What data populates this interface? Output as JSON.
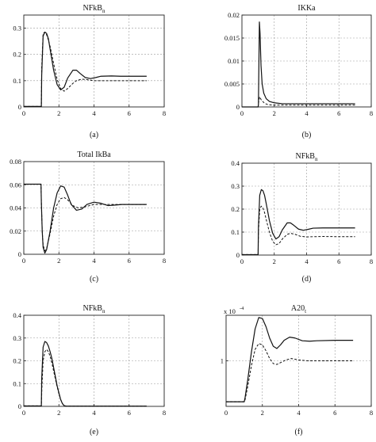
{
  "chart_data": [
    {
      "type": "line",
      "title": "NFkB",
      "title_sub": "n",
      "caption": "(a)",
      "xlim": [
        0,
        8
      ],
      "ylim": [
        0,
        0.35
      ],
      "xticks": [
        0,
        2,
        4,
        6,
        8
      ],
      "yticks": [
        0,
        0.1,
        0.2,
        0.3
      ],
      "ytick_labels": [
        "0",
        "0.1",
        "0.2",
        "0.3"
      ],
      "grid": true,
      "series": [
        {
          "style": "solid",
          "x": [
            0,
            1,
            1.02,
            1.1,
            1.2,
            1.3,
            1.4,
            1.5,
            1.7,
            1.9,
            2.1,
            2.3,
            2.5,
            2.8,
            3,
            3.2,
            3.5,
            3.8,
            4.1,
            4.4,
            5,
            5.5,
            6,
            7
          ],
          "y": [
            0.002,
            0.002,
            0.12,
            0.27,
            0.285,
            0.28,
            0.26,
            0.22,
            0.14,
            0.085,
            0.065,
            0.075,
            0.11,
            0.14,
            0.14,
            0.128,
            0.112,
            0.108,
            0.112,
            0.117,
            0.118,
            0.117,
            0.117,
            0.117
          ]
        },
        {
          "style": "dashed",
          "x": [
            0,
            1,
            1.02,
            1.1,
            1.2,
            1.3,
            1.4,
            1.5,
            1.7,
            1.9,
            2.1,
            2.3,
            2.5,
            2.8,
            3,
            3.3,
            3.6,
            4,
            4.4,
            5,
            6,
            7
          ],
          "y": [
            0.002,
            0.002,
            0.15,
            0.28,
            0.285,
            0.275,
            0.255,
            0.23,
            0.165,
            0.105,
            0.07,
            0.06,
            0.07,
            0.09,
            0.1,
            0.106,
            0.104,
            0.1,
            0.1,
            0.1,
            0.1,
            0.1
          ]
        }
      ]
    },
    {
      "type": "line",
      "title": "IKKa",
      "title_sub": "",
      "caption": "(b)",
      "xlim": [
        0,
        8
      ],
      "ylim": [
        0,
        0.02
      ],
      "xticks": [
        0,
        2,
        4,
        6,
        8
      ],
      "yticks": [
        0,
        0.005,
        0.01,
        0.015,
        0.02
      ],
      "ytick_labels": [
        "0",
        "0.005",
        "0.01",
        "0.015",
        "0.02"
      ],
      "grid": true,
      "series": [
        {
          "style": "solid",
          "x": [
            0,
            1,
            1.02,
            1.08,
            1.12,
            1.18,
            1.25,
            1.35,
            1.5,
            1.7,
            2,
            2.5,
            3,
            4,
            5,
            6,
            7
          ],
          "y": [
            0,
            0,
            0.0005,
            0.0185,
            0.016,
            0.009,
            0.005,
            0.003,
            0.0018,
            0.0012,
            0.0009,
            0.0007,
            0.0007,
            0.0007,
            0.0007,
            0.0007,
            0.0007
          ]
        },
        {
          "style": "dashed",
          "x": [
            0,
            1,
            1.05,
            1.1,
            1.2,
            1.4,
            1.6,
            2,
            2.5,
            3,
            4,
            5,
            6,
            7
          ],
          "y": [
            0,
            0,
            0.0015,
            0.0022,
            0.0015,
            0.0008,
            0.0005,
            0.0004,
            0.0004,
            0.0004,
            0.0004,
            0.0004,
            0.0004,
            0.0004
          ]
        }
      ]
    },
    {
      "type": "line",
      "title": "Total IkBa",
      "title_sub": "",
      "caption": "(c)",
      "xlim": [
        0,
        8
      ],
      "ylim": [
        0,
        0.08
      ],
      "xticks": [
        0,
        2,
        4,
        6,
        8
      ],
      "yticks": [
        0,
        0.02,
        0.04,
        0.06,
        0.08
      ],
      "ytick_labels": [
        "0",
        "0.02",
        "0.04",
        "0.06",
        "0.08"
      ],
      "grid": true,
      "series": [
        {
          "style": "solid",
          "x": [
            0,
            0.98,
            1,
            1.05,
            1.1,
            1.2,
            1.3,
            1.5,
            1.7,
            1.9,
            2.1,
            2.3,
            2.5,
            2.7,
            3,
            3.3,
            3.6,
            4,
            4.4,
            4.8,
            5.2,
            5.6,
            6,
            7
          ],
          "y": [
            0.0605,
            0.0605,
            0.045,
            0.02,
            0.006,
            0.001,
            0.004,
            0.02,
            0.04,
            0.053,
            0.059,
            0.058,
            0.051,
            0.043,
            0.038,
            0.039,
            0.043,
            0.045,
            0.044,
            0.042,
            0.0425,
            0.043,
            0.043,
            0.043
          ]
        },
        {
          "style": "dashed",
          "x": [
            0,
            0.98,
            1,
            1.05,
            1.1,
            1.2,
            1.3,
            1.5,
            1.7,
            1.9,
            2.1,
            2.3,
            2.5,
            2.8,
            3.1,
            3.5,
            4,
            4.5,
            5,
            6,
            7
          ],
          "y": [
            0.0605,
            0.0605,
            0.045,
            0.02,
            0.008,
            0.003,
            0.005,
            0.018,
            0.033,
            0.043,
            0.048,
            0.049,
            0.047,
            0.042,
            0.04,
            0.041,
            0.043,
            0.043,
            0.043,
            0.043,
            0.043
          ]
        }
      ]
    },
    {
      "type": "line",
      "title": "NFkB",
      "title_sub": "n",
      "caption": "(d)",
      "xlim": [
        0,
        8
      ],
      "ylim": [
        0,
        0.4
      ],
      "xticks": [
        0,
        2,
        4,
        6,
        8
      ],
      "yticks": [
        0,
        0.1,
        0.2,
        0.3,
        0.4
      ],
      "ytick_labels": [
        "0",
        "0.1",
        "0.2",
        "0.3",
        "0.4"
      ],
      "grid": true,
      "series": [
        {
          "style": "solid",
          "x": [
            0,
            1,
            1.02,
            1.1,
            1.2,
            1.3,
            1.4,
            1.5,
            1.7,
            1.9,
            2.1,
            2.3,
            2.5,
            2.8,
            3,
            3.2,
            3.5,
            3.8,
            4.1,
            4.4,
            5,
            6,
            7
          ],
          "y": [
            0.002,
            0.002,
            0.12,
            0.26,
            0.285,
            0.28,
            0.26,
            0.225,
            0.15,
            0.095,
            0.07,
            0.08,
            0.11,
            0.14,
            0.14,
            0.13,
            0.113,
            0.108,
            0.112,
            0.117,
            0.118,
            0.118,
            0.118
          ]
        },
        {
          "style": "dashed",
          "x": [
            0,
            1,
            1.02,
            1.1,
            1.2,
            1.3,
            1.4,
            1.5,
            1.7,
            1.9,
            2.1,
            2.3,
            2.5,
            2.8,
            3,
            3.3,
            3.6,
            4,
            4.4,
            5,
            6,
            7
          ],
          "y": [
            0.002,
            0.002,
            0.1,
            0.2,
            0.213,
            0.205,
            0.185,
            0.155,
            0.1,
            0.06,
            0.045,
            0.05,
            0.07,
            0.09,
            0.095,
            0.09,
            0.082,
            0.079,
            0.08,
            0.081,
            0.08,
            0.08
          ]
        }
      ]
    },
    {
      "type": "line",
      "title": "NFkB",
      "title_sub": "n",
      "caption": "(e)",
      "xlim": [
        0,
        8
      ],
      "ylim": [
        0,
        0.4
      ],
      "xticks": [
        0,
        2,
        4,
        6,
        8
      ],
      "yticks": [
        0,
        0.1,
        0.2,
        0.3,
        0.4
      ],
      "ytick_labels": [
        "0",
        "0.1",
        "0.2",
        "0.3",
        "0.4"
      ],
      "grid": true,
      "series": [
        {
          "style": "solid",
          "x": [
            0,
            1,
            1.02,
            1.1,
            1.2,
            1.3,
            1.4,
            1.5,
            1.6,
            1.7,
            1.8,
            1.9,
            2,
            2.1,
            2.2,
            2.3,
            2.4,
            3,
            7
          ],
          "y": [
            0.002,
            0.002,
            0.12,
            0.26,
            0.285,
            0.28,
            0.265,
            0.24,
            0.21,
            0.17,
            0.13,
            0.09,
            0.06,
            0.03,
            0.012,
            0.003,
            0.001,
            0.001,
            0.001
          ]
        },
        {
          "style": "dashed",
          "x": [
            0,
            1,
            1.03,
            1.1,
            1.2,
            1.3,
            1.4,
            1.5,
            1.6,
            1.7,
            1.8,
            1.9,
            2,
            2.1,
            2.2,
            2.3,
            2.4,
            3,
            7
          ],
          "y": [
            0.002,
            0.002,
            0.08,
            0.2,
            0.24,
            0.25,
            0.24,
            0.22,
            0.19,
            0.155,
            0.12,
            0.085,
            0.055,
            0.03,
            0.012,
            0.004,
            0.001,
            0.001,
            0.001
          ]
        }
      ]
    },
    {
      "type": "line",
      "title": "A20",
      "title_sub": "t",
      "caption": "(f)",
      "axis_multiplier": "x 10",
      "axis_multiplier_exp": "-4",
      "xlim": [
        0,
        8
      ],
      "ylim": [
        0,
        2
      ],
      "xticks": [
        0,
        2,
        4,
        6,
        8
      ],
      "yticks": [
        1
      ],
      "ytick_labels": [
        "1"
      ],
      "grid": true,
      "series": [
        {
          "style": "solid",
          "x": [
            0,
            1,
            1.05,
            1.2,
            1.4,
            1.6,
            1.8,
            2,
            2.2,
            2.4,
            2.6,
            2.8,
            3,
            3.2,
            3.5,
            3.8,
            4.2,
            4.6,
            5,
            6,
            7
          ],
          "y": [
            0.1,
            0.1,
            0.2,
            0.6,
            1.2,
            1.7,
            1.95,
            1.93,
            1.75,
            1.5,
            1.32,
            1.27,
            1.35,
            1.45,
            1.52,
            1.5,
            1.44,
            1.43,
            1.44,
            1.45,
            1.45
          ]
        },
        {
          "style": "dashed",
          "x": [
            0,
            1,
            1.05,
            1.2,
            1.4,
            1.6,
            1.8,
            2,
            2.2,
            2.4,
            2.6,
            2.8,
            3,
            3.3,
            3.6,
            4,
            4.5,
            5,
            6,
            7
          ],
          "y": [
            0.1,
            0.1,
            0.15,
            0.45,
            0.9,
            1.25,
            1.38,
            1.35,
            1.22,
            1.05,
            0.94,
            0.92,
            0.96,
            1.02,
            1.05,
            1.02,
            1,
            1,
            1,
            1
          ]
        }
      ]
    }
  ]
}
